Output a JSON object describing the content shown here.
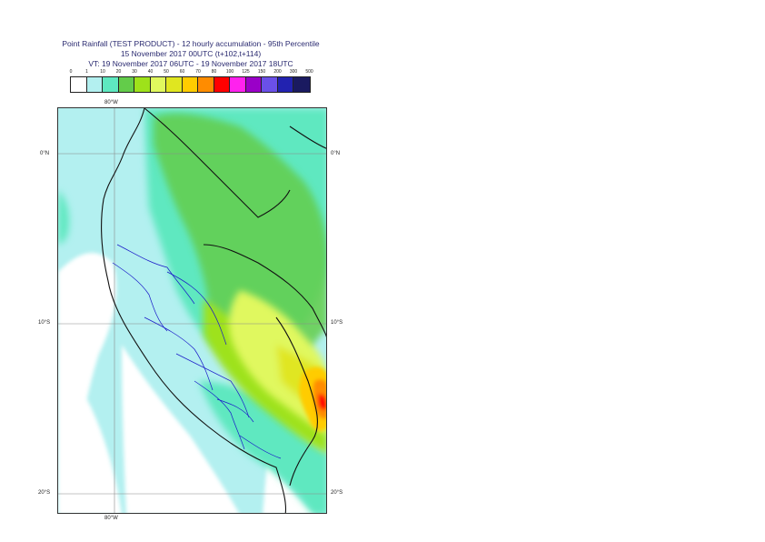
{
  "title": {
    "line1": "Point Rainfall (TEST PRODUCT) - 12 hourly accumulation - 95th Percentile",
    "line2": "15 November 2017 00UTC (t+102,t+114)",
    "line3": "VT: 19 November 2017 06UTC - 19 November 2017 18UTC"
  },
  "legend": {
    "ticks": [
      "0",
      "1",
      "10",
      "20",
      "30",
      "40",
      "50",
      "60",
      "70",
      "80",
      "100",
      "125",
      "150",
      "200",
      "300",
      "500"
    ],
    "colors": [
      "#ffffff",
      "#b3f0f0",
      "#5ee8c0",
      "#63cc4a",
      "#9ee21a",
      "#e0f85e",
      "#e0e620",
      "#ffcc00",
      "#ff8c00",
      "#ff0000",
      "#ff22ee",
      "#9a00c8",
      "#6a50e8",
      "#2222b0",
      "#1a1a60"
    ]
  },
  "axes": {
    "lon_top": "80°W",
    "lon_bottom": "80°W",
    "lat_left": [
      "0°N",
      "10°S",
      "20°S"
    ],
    "lat_right": [
      "0°N",
      "10°S",
      "20°S"
    ]
  }
}
